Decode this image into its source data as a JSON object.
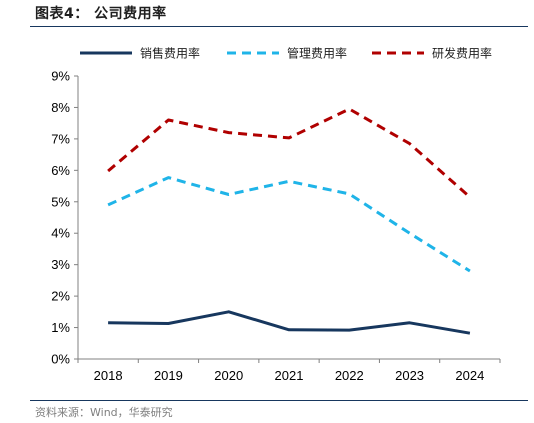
{
  "header": {
    "title": "图表4：  公司费用率"
  },
  "footer": {
    "source": "资料来源：Wind，华泰研究"
  },
  "chart_data": {
    "type": "line",
    "x": [
      "2018",
      "2019",
      "2020",
      "2021",
      "2022",
      "2023",
      "2024"
    ],
    "yticks": [
      "0%",
      "1%",
      "2%",
      "3%",
      "4%",
      "5%",
      "6%",
      "7%",
      "8%",
      "9%"
    ],
    "ylim": [
      0,
      9
    ],
    "grid": false,
    "legend_position": "top",
    "series": [
      {
        "name": "销售费用率",
        "color": "#17375e",
        "dash": "solid",
        "values": [
          1.15,
          1.13,
          1.5,
          0.93,
          0.92,
          1.15,
          0.82
        ]
      },
      {
        "name": "管理费用率",
        "color": "#1fb4e8",
        "dash": "dashed",
        "values": [
          4.9,
          5.77,
          5.23,
          5.65,
          5.25,
          4.0,
          2.8
        ]
      },
      {
        "name": "研发费用率",
        "color": "#b00000",
        "dash": "dashed",
        "values": [
          5.98,
          7.6,
          7.2,
          7.03,
          7.95,
          6.85,
          5.15
        ]
      }
    ]
  }
}
